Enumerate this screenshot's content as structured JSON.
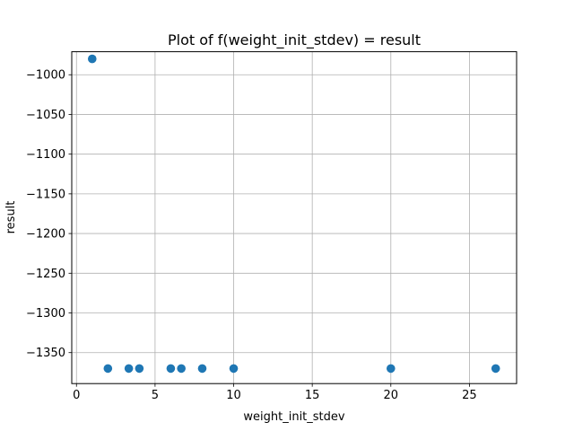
{
  "chart_data": {
    "type": "scatter",
    "title": "Plot of f(weight_init_stdev) = result",
    "xlabel": "weight_init_stdev",
    "ylabel": "result",
    "xlim": [
      -0.3,
      28.0
    ],
    "ylim": [
      -1389,
      -971
    ],
    "xticks": [
      0,
      5,
      10,
      15,
      20,
      25
    ],
    "xtick_labels": [
      "0",
      "5",
      "10",
      "15",
      "20",
      "25"
    ],
    "yticks": [
      -1000,
      -1050,
      -1100,
      -1150,
      -1200,
      -1250,
      -1300,
      -1350
    ],
    "ytick_labels": [
      "−1000",
      "−1050",
      "−1100",
      "−1150",
      "−1200",
      "−1250",
      "−1300",
      "−1350"
    ],
    "grid": true,
    "marker_color": "#1f77b4",
    "series": [
      {
        "x": [
          1.0,
          2.0,
          3.33,
          4.0,
          6.0,
          6.67,
          8.0,
          10.0,
          20.0,
          26.67
        ],
        "y": [
          -980,
          -1370,
          -1370,
          -1370,
          -1370,
          -1370,
          -1370,
          -1370,
          -1370,
          -1370
        ]
      }
    ]
  }
}
